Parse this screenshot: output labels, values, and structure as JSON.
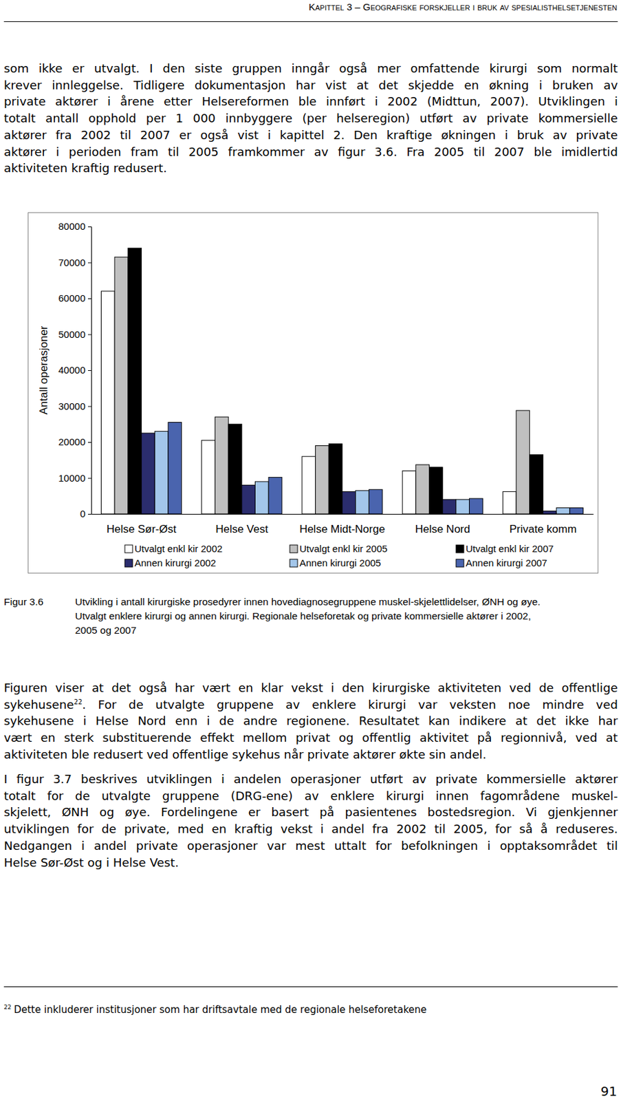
{
  "header": "Kapittel 3 – Geografiske forskjeller i bruk av spesialisthelsetjenesten",
  "paragraphs": [
    {
      "lines": [
        "som ikke er utvalgt. I den siste gruppen inngår også mer omfattende kirurgi som normalt",
        "krever innleggelse. Tidligere dokumentasjon har vist at det skjedde en økning i bruken av",
        "private aktører i årene etter Helsereformen ble innført i 2002 (Midttun, 2007). Utviklingen i",
        "totalt antall opphold per 1 000 innbyggere (per helseregion) utført av private kommersielle",
        "aktører fra 2002 til 2007 er også vist i kapittel 2. Den kraftige økningen i bruk av private",
        "aktører i perioden fram til 2005 framkommer av figur 3.6. Fra 2005 til 2007 ble imidlertid",
        "aktiviteten kraftig redusert."
      ]
    },
    {
      "lines": [
        "Figuren viser at det også har vært en klar vekst i den kirurgiske aktiviteten ved de offentlige",
        [
          {
            "text": "sykehusene"
          },
          {
            "sup": "22"
          },
          {
            "text": ". For de utvalgte gruppene av enklere kirurgi var veksten noe mindre ved"
          }
        ],
        "sykehusene i Helse Nord enn i de andre regionene. Resultatet kan indikere at det ikke har",
        "vært en sterk substituerende effekt mellom privat og offentlig aktivitet på regionnivå, ved at",
        "aktiviteten ble redusert ved offentlige sykehus når private aktører økte sin andel."
      ]
    },
    {
      "lines": [
        "I figur 3.7 beskrives utviklingen i andelen operasjoner utført av private kommersielle aktører",
        "totalt for de utvalgte gruppene (DRG-ene) av enklere kirurgi innen fagområdene muskel-",
        "skjelett, ØNH og øye. Fordelingene er basert på pasientenes bostedsregion. Vi gjenkjenner",
        "utviklingen for de private, med en kraftig vekst i andel fra 2002 til 2005, for så å reduseres.",
        "Nedgangen i andel private operasjoner var mest uttalt for befolkningen i opptaksområdet til",
        "Helse Sør-Øst og i Helse Vest."
      ]
    }
  ],
  "figure": {
    "label": "Figur 3.6",
    "caption_lines": [
      "Utvikling i antall kirurgiske prosedyrer innen hovediagnosegruppene muskel-skjelettlidelser, ØNH og øye.",
      "Utvalgt enklere kirurgi og annen kirurgi. Regionale helseforetak og private kommersielle aktører i 2002,",
      "2005 og 2007"
    ]
  },
  "chart_data": {
    "type": "bar",
    "y_label": "Antall operasjoner",
    "categories": [
      "Helse Sør-Øst",
      "Helse Vest",
      "Helse Midt-Norge",
      "Helse Nord",
      "Private komm"
    ],
    "series": [
      {
        "name": "Utvalgt enkl kir 2002",
        "color": "#ffffff",
        "values": [
          62000,
          20500,
          16000,
          12000,
          6200
        ]
      },
      {
        "name": "Utvalgt enkl kir 2005",
        "color": "#c0c0c0",
        "values": [
          71500,
          27000,
          19000,
          13700,
          28800
        ]
      },
      {
        "name": "Utvalgt enkl kir 2007",
        "color": "#000000",
        "values": [
          74000,
          25000,
          19500,
          13000,
          16500
        ]
      },
      {
        "name": "Annen kirurgi 2002",
        "color": "#2b2d6e",
        "values": [
          22500,
          8000,
          6200,
          4000,
          800
        ]
      },
      {
        "name": "Annen kirurgi 2005",
        "color": "#a3c6ea",
        "values": [
          23000,
          9000,
          6500,
          4000,
          1700
        ]
      },
      {
        "name": "Annen kirurgi 2007",
        "color": "#4a64ae",
        "values": [
          25500,
          10200,
          6800,
          4300,
          1700
        ]
      }
    ],
    "ylim": [
      0,
      80000
    ],
    "yticks": [
      0,
      10000,
      20000,
      30000,
      40000,
      50000,
      60000,
      70000,
      80000
    ],
    "legend": "bottom"
  },
  "footnote": {
    "mark": "22",
    "text": "Dette inkluderer institusjoner som har driftsavtale med de regionale helseforetakene"
  },
  "page_number": "91"
}
